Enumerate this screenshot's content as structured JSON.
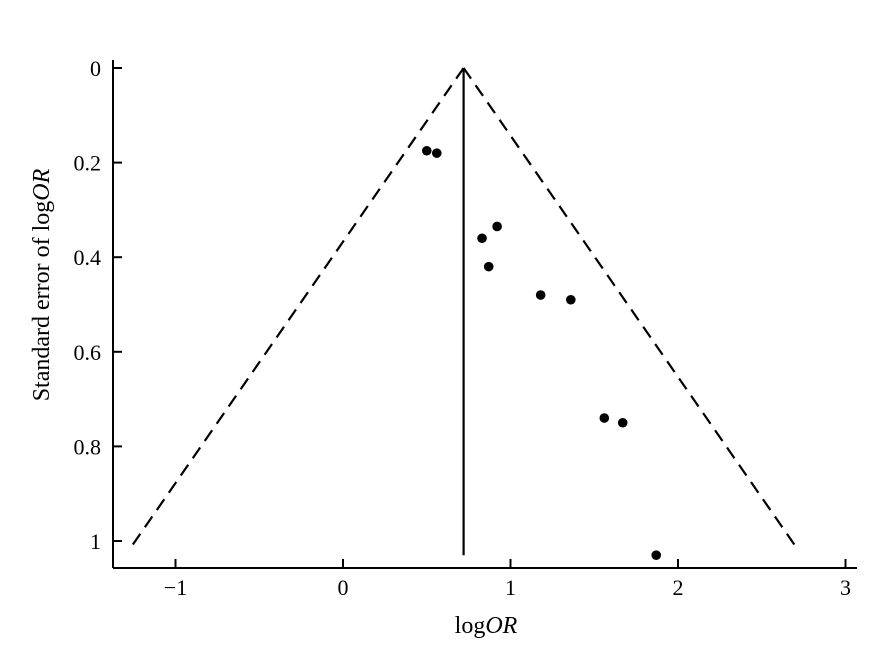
{
  "chart_data": {
    "type": "scatter",
    "subtype": "funnel-plot",
    "xlabel": "logOR",
    "xlabel_plain": "log",
    "xlabel_italic": "OR",
    "ylabel_plain": "Standard error of log",
    "ylabel_italic": "OR",
    "x_ticks": [
      {
        "value": -1,
        "label": "−1"
      },
      {
        "value": 0,
        "label": "0"
      },
      {
        "value": 1,
        "label": "1"
      },
      {
        "value": 2,
        "label": "2"
      },
      {
        "value": 3,
        "label": "3"
      }
    ],
    "y_ticks": [
      {
        "value": 0,
        "label": "0"
      },
      {
        "value": 0.2,
        "label": "0.2"
      },
      {
        "value": 0.4,
        "label": "0.4"
      },
      {
        "value": 0.6,
        "label": "0.6"
      },
      {
        "value": 0.8,
        "label": "0.8"
      },
      {
        "value": 1,
        "label": "1"
      }
    ],
    "xlim": [
      -1.4,
      3.1
    ],
    "ylim": [
      0,
      1.05
    ],
    "y_inverted": true,
    "grid": false,
    "pooled_logOR": 0.72,
    "funnel_max_se": 1.01,
    "funnel_z": 1.96,
    "points": [
      {
        "x": 0.5,
        "y": 0.175
      },
      {
        "x": 0.56,
        "y": 0.18
      },
      {
        "x": 0.83,
        "y": 0.36
      },
      {
        "x": 0.92,
        "y": 0.335
      },
      {
        "x": 0.87,
        "y": 0.42
      },
      {
        "x": 1.18,
        "y": 0.48
      },
      {
        "x": 1.36,
        "y": 0.49
      },
      {
        "x": 1.56,
        "y": 0.74
      },
      {
        "x": 1.67,
        "y": 0.75
      },
      {
        "x": 1.87,
        "y": 1.03
      }
    ]
  }
}
